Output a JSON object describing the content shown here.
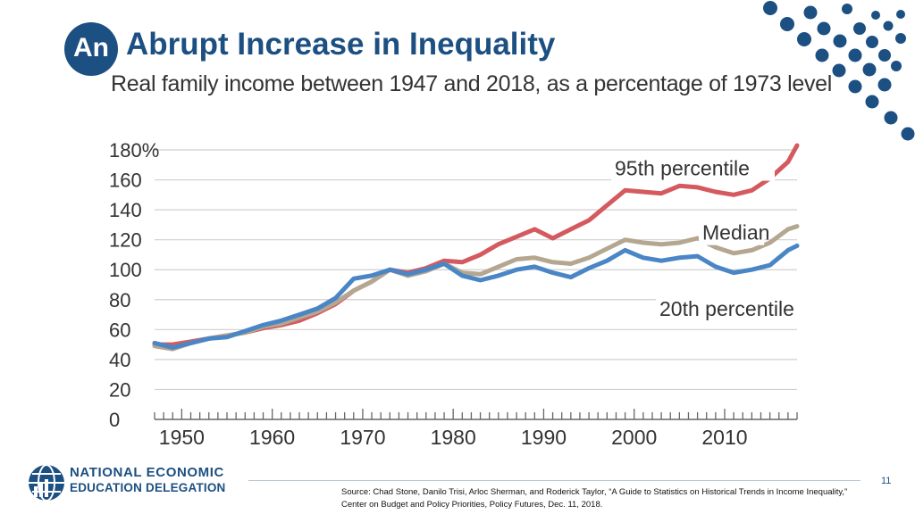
{
  "slide": {
    "title_badge": "An",
    "title": "Abrupt Increase in Inequality",
    "subtitle": "Real family income between 1947 and 2018, as a percentage of 1973 level",
    "page_number": "11",
    "source_line1": "Source: Chad Stone, Danilo Trisi, Arloc Sherman, and Roderick Taylor, “A Guide to Statistics on Historical Trends in Income Inequality,”",
    "source_line2": "Center on Budget and Policy Priorities, Policy Futures, Dec. 11, 2018."
  },
  "logo": {
    "line1": "NATIONAL ECONOMIC",
    "line2": "EDUCATION DELEGATION"
  },
  "colors": {
    "brand": "#1c4f82",
    "p95": "#d45a5f",
    "median": "#b5a690",
    "p20": "#4a86c5",
    "grid": "#cfcfcf"
  },
  "chart_data": {
    "type": "line",
    "title": "Real family income between 1947 and 2018, as a percentage of 1973 level",
    "xlabel": "",
    "ylabel": "",
    "xlim": [
      1947,
      2018
    ],
    "ylim": [
      0,
      180
    ],
    "y_ticks": [
      0,
      20,
      40,
      60,
      80,
      100,
      120,
      140,
      160,
      180
    ],
    "y_tick_labels": [
      "0",
      "20",
      "40",
      "60",
      "80",
      "100",
      "120",
      "140",
      "160",
      "180%"
    ],
    "x_ticks": [
      1950,
      1960,
      1970,
      1980,
      1990,
      2000,
      2010
    ],
    "x_tick_labels": [
      "1950",
      "1960",
      "1970",
      "1980",
      "1990",
      "2000",
      "2010"
    ],
    "grid": true,
    "series": [
      {
        "name": "95th percentile",
        "color": "#d45a5f",
        "x": [
          1947,
          1949,
          1951,
          1953,
          1955,
          1957,
          1959,
          1961,
          1963,
          1965,
          1967,
          1969,
          1971,
          1973,
          1975,
          1977,
          1979,
          1981,
          1983,
          1985,
          1987,
          1989,
          1991,
          1993,
          1995,
          1997,
          1999,
          2001,
          2003,
          2005,
          2007,
          2009,
          2011,
          2013,
          2015,
          2017,
          2018
        ],
        "values": [
          50,
          50,
          52,
          54,
          56,
          58,
          61,
          63,
          66,
          71,
          77,
          86,
          92,
          100,
          98,
          101,
          106,
          105,
          110,
          117,
          122,
          127,
          121,
          127,
          133,
          143,
          153,
          152,
          151,
          156,
          155,
          152,
          150,
          153,
          161,
          172,
          183
        ]
      },
      {
        "name": "Median",
        "color": "#b5a690",
        "x": [
          1947,
          1949,
          1951,
          1953,
          1955,
          1957,
          1959,
          1961,
          1963,
          1965,
          1967,
          1969,
          1971,
          1973,
          1975,
          1977,
          1979,
          1981,
          1983,
          1985,
          1987,
          1989,
          1991,
          1993,
          1995,
          1997,
          1999,
          2001,
          2003,
          2005,
          2007,
          2009,
          2011,
          2013,
          2015,
          2017,
          2018
        ],
        "values": [
          49,
          47,
          51,
          54,
          56,
          58,
          62,
          64,
          68,
          72,
          78,
          86,
          92,
          100,
          96,
          99,
          104,
          98,
          97,
          102,
          107,
          108,
          105,
          104,
          108,
          114,
          120,
          118,
          117,
          118,
          121,
          115,
          111,
          113,
          118,
          127,
          129
        ]
      },
      {
        "name": "20th percentile",
        "color": "#4a86c5",
        "x": [
          1947,
          1949,
          1951,
          1953,
          1955,
          1957,
          1959,
          1961,
          1963,
          1965,
          1967,
          1969,
          1971,
          1973,
          1975,
          1977,
          1979,
          1981,
          1983,
          1985,
          1987,
          1989,
          1991,
          1993,
          1995,
          1997,
          1999,
          2001,
          2003,
          2005,
          2007,
          2009,
          2011,
          2013,
          2015,
          2017,
          2018
        ],
        "values": [
          51,
          48,
          51,
          54,
          55,
          59,
          63,
          66,
          70,
          74,
          81,
          94,
          96,
          100,
          97,
          100,
          104,
          96,
          93,
          96,
          100,
          102,
          98,
          95,
          101,
          106,
          113,
          108,
          106,
          108,
          109,
          102,
          98,
          100,
          103,
          113,
          116
        ]
      }
    ],
    "annotations": [
      {
        "text": "95th percentile",
        "series": "95th percentile"
      },
      {
        "text": "Median",
        "series": "Median"
      },
      {
        "text": "20th percentile",
        "series": "20th percentile"
      }
    ]
  }
}
